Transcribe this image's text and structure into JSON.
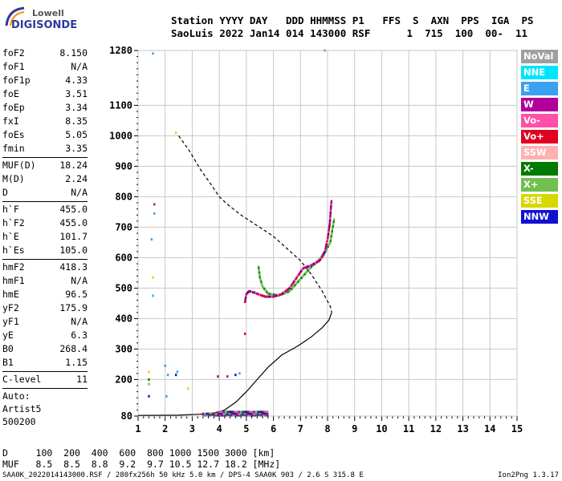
{
  "logo": {
    "line1": "Lowell",
    "line2": "DIGISONDE"
  },
  "header": {
    "line1": "Station YYYY DAY   DDD HHMMSS P1   FFS  S  AXN  PPS  IGA  PS",
    "line2": "SaoLuis 2022 Jan14 014 143000 RSF      1  715  100  00-  11"
  },
  "params": {
    "group1": [
      {
        "name": "foF2",
        "value": "8.150"
      },
      {
        "name": "foF1",
        "value": "N/A"
      },
      {
        "name": "foF1p",
        "value": "4.33"
      },
      {
        "name": "foE",
        "value": "3.51"
      },
      {
        "name": "foEp",
        "value": "3.34"
      },
      {
        "name": "fxI",
        "value": "8.35"
      },
      {
        "name": "foEs",
        "value": "5.05"
      },
      {
        "name": "fmin",
        "value": "3.35"
      }
    ],
    "group2": [
      {
        "name": "MUF(D)",
        "value": "18.24"
      },
      {
        "name": "M(D)",
        "value": "2.24"
      },
      {
        "name": "D",
        "value": "N/A"
      }
    ],
    "group3": [
      {
        "name": "h`F",
        "value": "455.0"
      },
      {
        "name": "h`F2",
        "value": "455.0"
      },
      {
        "name": "h`E",
        "value": "101.7"
      },
      {
        "name": "h`Es",
        "value": "105.0"
      }
    ],
    "group4": [
      {
        "name": "hmF2",
        "value": "418.3"
      },
      {
        "name": "hmF1",
        "value": "N/A"
      },
      {
        "name": "hmE",
        "value": "96.5"
      },
      {
        "name": "yF2",
        "value": "175.9"
      },
      {
        "name": "yF1",
        "value": "N/A"
      },
      {
        "name": "yE",
        "value": "6.3"
      },
      {
        "name": "B0",
        "value": "268.4"
      },
      {
        "name": "B1",
        "value": "1.15"
      }
    ],
    "clevel": {
      "name": "C-level",
      "value": "11"
    },
    "auto": [
      "Auto:",
      "Artist5",
      "500200"
    ]
  },
  "legend": [
    {
      "label": "NoVal",
      "color": "#a0a0a0"
    },
    {
      "label": "NNE",
      "color": "#00e5ff"
    },
    {
      "label": "E",
      "color": "#3aa0f0"
    },
    {
      "label": "W",
      "color": "#b0009a"
    },
    {
      "label": "Vo-",
      "color": "#ff4fa8"
    },
    {
      "label": "Vo+",
      "color": "#e00020"
    },
    {
      "label": "SSW",
      "color": "#ffb0b0"
    },
    {
      "label": "X-",
      "color": "#007a00"
    },
    {
      "label": "X+",
      "color": "#70c050"
    },
    {
      "label": "SSE",
      "color": "#d8d800"
    },
    {
      "label": "NNW",
      "color": "#1010d0"
    }
  ],
  "bottom": {
    "line1": "D     100  200  400  600  800 1000 1500 3000 [km]",
    "line2": "MUF   8.5  8.5  8.8  9.2  9.7 10.5 12.7 18.2 [MHz]"
  },
  "footer": {
    "left": "SAA0K_2022014143000.RSF / 280fx256h 50 kHz 5.0 km / DPS-4 SAA0K 903 / 2.6 S 315.8 E",
    "right": "Ion2Png 1.3.17"
  },
  "chart_data": {
    "type": "scatter",
    "xlim": [
      1,
      15
    ],
    "ylim": [
      80,
      1280
    ],
    "x_ticks": [
      1,
      2,
      3,
      4,
      5,
      6,
      7,
      8,
      9,
      10,
      11,
      12,
      13,
      14,
      15
    ],
    "y_ticks": [
      80,
      200,
      300,
      400,
      500,
      600,
      700,
      800,
      900,
      1000,
      1100,
      1280
    ],
    "profile_solid": [
      [
        1.0,
        82
      ],
      [
        2.5,
        83
      ],
      [
        3.3,
        86
      ],
      [
        3.8,
        90
      ],
      [
        4.2,
        100
      ],
      [
        4.6,
        125
      ],
      [
        5.0,
        160
      ],
      [
        5.4,
        200
      ],
      [
        5.8,
        240
      ],
      [
        6.3,
        280
      ],
      [
        6.9,
        310
      ],
      [
        7.4,
        340
      ],
      [
        7.8,
        370
      ],
      [
        8.05,
        395
      ],
      [
        8.15,
        420
      ]
    ],
    "profile_dashed": [
      [
        2.5,
        1000
      ],
      [
        2.9,
        950
      ],
      [
        3.3,
        890
      ],
      [
        3.7,
        840
      ],
      [
        4.0,
        800
      ],
      [
        4.3,
        775
      ],
      [
        4.8,
        740
      ],
      [
        5.4,
        705
      ],
      [
        6.0,
        670
      ],
      [
        6.5,
        630
      ],
      [
        7.0,
        590
      ],
      [
        7.4,
        545
      ],
      [
        7.8,
        490
      ],
      [
        8.1,
        440
      ],
      [
        8.15,
        420
      ]
    ],
    "trace_F_ordinary": [
      [
        4.95,
        455
      ],
      [
        5.0,
        480
      ],
      [
        5.1,
        490
      ],
      [
        5.3,
        485
      ],
      [
        5.5,
        478
      ],
      [
        5.7,
        472
      ],
      [
        6.0,
        472
      ],
      [
        6.3,
        480
      ],
      [
        6.6,
        500
      ],
      [
        6.9,
        540
      ],
      [
        7.1,
        565
      ],
      [
        7.4,
        575
      ],
      [
        7.7,
        590
      ],
      [
        7.9,
        620
      ],
      [
        8.0,
        660
      ],
      [
        8.08,
        710
      ],
      [
        8.12,
        760
      ],
      [
        8.15,
        790
      ]
    ],
    "trace_F_extraordinary": [
      [
        5.45,
        570
      ],
      [
        5.5,
        535
      ],
      [
        5.6,
        505
      ],
      [
        5.8,
        482
      ],
      [
        6.2,
        476
      ],
      [
        6.6,
        490
      ],
      [
        7.0,
        530
      ],
      [
        7.4,
        570
      ],
      [
        7.8,
        600
      ],
      [
        8.1,
        650
      ],
      [
        8.25,
        730
      ]
    ],
    "trace_Es": [
      [
        3.4,
        83
      ],
      [
        3.7,
        86
      ],
      [
        4.0,
        90
      ],
      [
        4.3,
        92
      ],
      [
        4.6,
        93
      ],
      [
        5.0,
        92
      ],
      [
        5.4,
        90
      ],
      [
        5.8,
        88
      ]
    ],
    "scatter_misc": [
      {
        "x": 1.55,
        "y": 1270,
        "c": "#3aa0f0"
      },
      {
        "x": 1.6,
        "y": 775,
        "c": "#b0009a"
      },
      {
        "x": 1.6,
        "y": 745,
        "c": "#3aa0f0"
      },
      {
        "x": 1.5,
        "y": 660,
        "c": "#3aa0f0"
      },
      {
        "x": 1.55,
        "y": 535,
        "c": "#d8d800"
      },
      {
        "x": 1.55,
        "y": 475,
        "c": "#3aa0f0"
      },
      {
        "x": 1.4,
        "y": 225,
        "c": "#d8d800"
      },
      {
        "x": 1.4,
        "y": 200,
        "c": "#007a00"
      },
      {
        "x": 1.4,
        "y": 185,
        "c": "#70c050"
      },
      {
        "x": 1.4,
        "y": 145,
        "c": "#1010d0"
      },
      {
        "x": 2.0,
        "y": 245,
        "c": "#3aa0f0"
      },
      {
        "x": 2.1,
        "y": 215,
        "c": "#3aa0f0"
      },
      {
        "x": 2.05,
        "y": 145,
        "c": "#3aa0f0"
      },
      {
        "x": 2.45,
        "y": 225,
        "c": "#3aa0f0"
      },
      {
        "x": 2.4,
        "y": 215,
        "c": "#1010d0"
      },
      {
        "x": 2.85,
        "y": 170,
        "c": "#d8d800"
      },
      {
        "x": 2.4,
        "y": 1010,
        "c": "#d8d800"
      },
      {
        "x": 3.95,
        "y": 210,
        "c": "#b0009a"
      },
      {
        "x": 4.3,
        "y": 210,
        "c": "#b0009a"
      },
      {
        "x": 4.6,
        "y": 215,
        "c": "#1010d0"
      },
      {
        "x": 4.75,
        "y": 220,
        "c": "#3aa0f0"
      },
      {
        "x": 4.95,
        "y": 350,
        "c": "#e00020"
      },
      {
        "x": 7.9,
        "y": 1280,
        "c": "#70c050"
      }
    ]
  }
}
